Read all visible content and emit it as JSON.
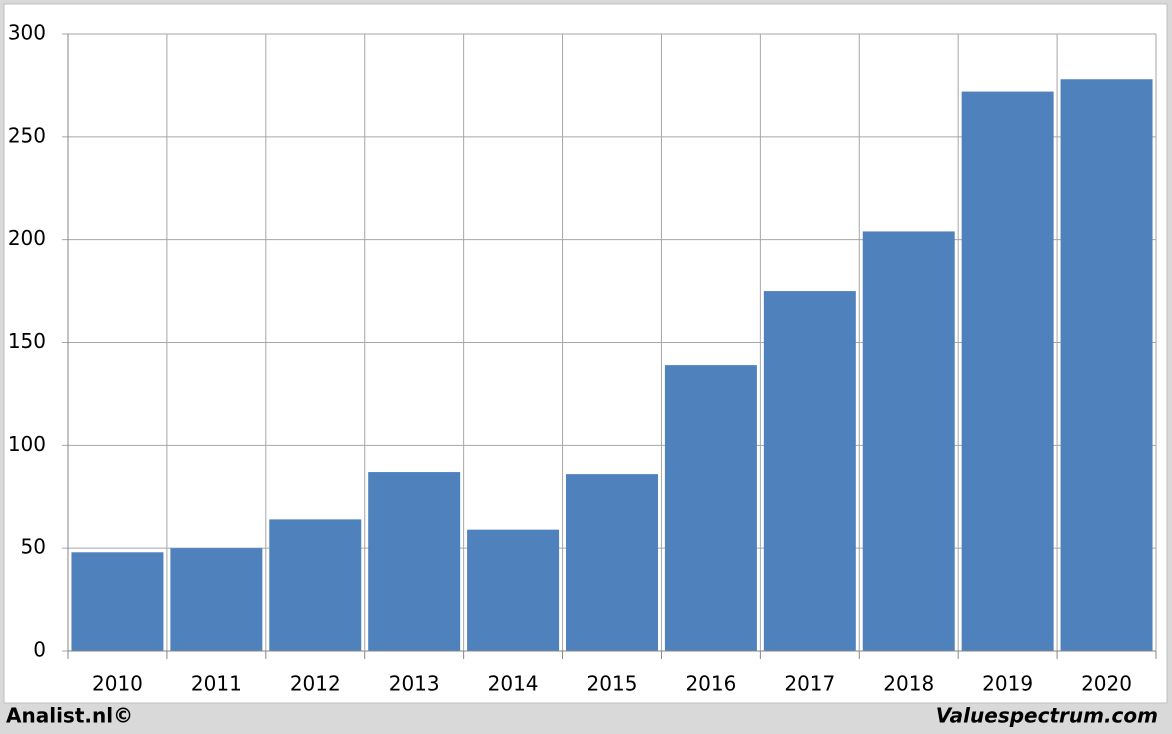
{
  "chart_data": {
    "type": "bar",
    "categories": [
      "2010",
      "2011",
      "2012",
      "2013",
      "2014",
      "2015",
      "2016",
      "2017",
      "2018",
      "2019",
      "2020"
    ],
    "values": [
      48,
      50,
      64,
      87,
      59,
      86,
      139,
      175,
      204,
      272,
      278
    ],
    "color": "#4f81bd",
    "ylim": [
      0,
      300
    ],
    "yticks": [
      0,
      50,
      100,
      150,
      200,
      250,
      300
    ],
    "grid": true
  },
  "footer": {
    "left": "Analist.nl©",
    "right": "Valuespectrum.com"
  }
}
